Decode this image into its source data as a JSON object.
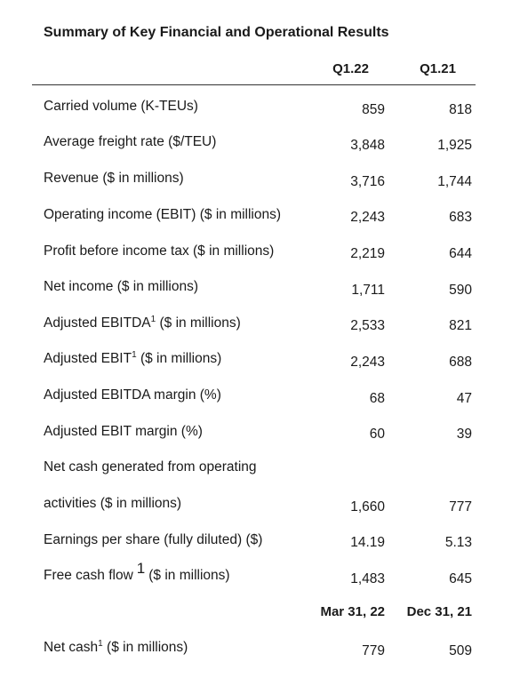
{
  "title": "Summary of Key Financial and Operational Results",
  "columns": [
    "Q1.22",
    "Q1.21"
  ],
  "rows": [
    {
      "label": "Carried volume (K-TEUs)",
      "sup": "",
      "suffix": "",
      "v1": "859",
      "v2": "818"
    },
    {
      "label": "Average freight rate ($/TEU)",
      "sup": "",
      "suffix": "",
      "v1": "3,848",
      "v2": "1,925"
    },
    {
      "label": "Revenue ($ in millions)",
      "sup": "",
      "suffix": "",
      "v1": "3,716",
      "v2": "1,744"
    },
    {
      "label": "Operating income (EBIT) ($ in millions)",
      "sup": "",
      "suffix": "",
      "v1": "2,243",
      "v2": "683"
    },
    {
      "label": "Profit before income tax ($ in millions)",
      "sup": "",
      "suffix": "",
      "v1": "2,219",
      "v2": "644"
    },
    {
      "label": "Net income ($ in millions)",
      "sup": "",
      "suffix": "",
      "v1": "1,711",
      "v2": "590"
    },
    {
      "label": "Adjusted EBITDA",
      "sup": "1",
      "suffix": " ($ in millions)",
      "v1": "2,533",
      "v2": "821"
    },
    {
      "label": "Adjusted EBIT",
      "sup": "1",
      "suffix": " ($ in millions)",
      "v1": "2,243",
      "v2": "688"
    },
    {
      "label": "Adjusted EBITDA margin (%)",
      "sup": "",
      "suffix": "",
      "v1": "68",
      "v2": "47"
    },
    {
      "label": "Adjusted EBIT margin (%)",
      "sup": "",
      "suffix": "",
      "v1": "60",
      "v2": "39"
    },
    {
      "label": "Net cash generated from operating",
      "sup": "",
      "suffix": "",
      "v1": "",
      "v2": ""
    },
    {
      "label": "activities ($ in millions)",
      "sup": "",
      "suffix": "",
      "v1": "1,660",
      "v2": "777"
    },
    {
      "label": "Earnings per share (fully diluted) ($)",
      "sup": "",
      "suffix": "",
      "v1": "14.19",
      "v2": "5.13"
    },
    {
      "label": "Free cash flow",
      "sup": "1",
      "suffix": "($ in millions)",
      "v1": "1,483",
      "v2": "645"
    }
  ],
  "balance_columns": [
    "Mar 31, 22",
    "Dec 31, 21"
  ],
  "balance_rows": [
    {
      "label": "Net cash",
      "sup": "1",
      "suffix": " ($ in millions)",
      "v1": "779",
      "v2": "509"
    }
  ]
}
